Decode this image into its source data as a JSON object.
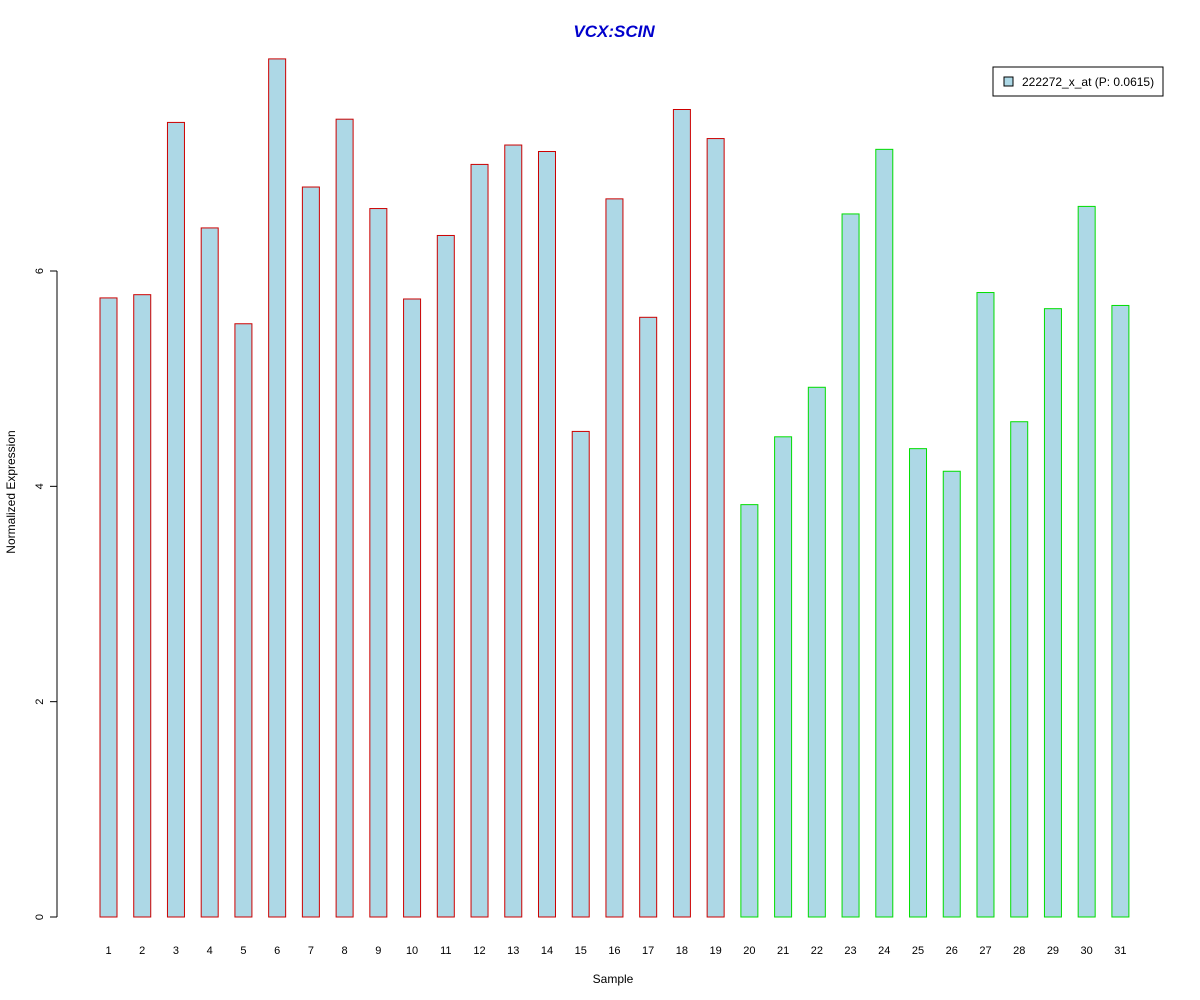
{
  "colors": {
    "title": "#0000cc",
    "bar_fill": "#add8e6",
    "group1_border": "#cc0000",
    "group2_border": "#00dd00",
    "axis": "#000000"
  },
  "chart_data": {
    "type": "bar",
    "title": "VCX:SCIN",
    "xlabel": "Sample",
    "ylabel": "Normalized Expression",
    "ylim": [
      0,
      8
    ],
    "yticks": [
      0,
      2,
      4,
      6
    ],
    "grid": false,
    "legend_position": "top-right",
    "categories": [
      "1",
      "2",
      "3",
      "4",
      "5",
      "6",
      "7",
      "8",
      "9",
      "10",
      "11",
      "12",
      "13",
      "14",
      "15",
      "16",
      "17",
      "18",
      "19",
      "20",
      "21",
      "22",
      "23",
      "24",
      "25",
      "26",
      "27",
      "28",
      "29",
      "30",
      "31"
    ],
    "series": [
      {
        "name": "222272_x_at (P: 0.0615)",
        "values": [
          5.75,
          5.78,
          7.38,
          6.4,
          5.51,
          7.97,
          6.78,
          7.41,
          6.58,
          5.74,
          6.33,
          6.99,
          7.17,
          7.11,
          4.51,
          6.67,
          5.57,
          7.5,
          7.23,
          3.83,
          4.46,
          4.92,
          6.53,
          7.13,
          4.35,
          4.14,
          5.8,
          4.6,
          5.65,
          6.6,
          5.68
        ],
        "groups": [
          1,
          1,
          1,
          1,
          1,
          1,
          1,
          1,
          1,
          1,
          1,
          1,
          1,
          1,
          1,
          1,
          1,
          1,
          1,
          2,
          2,
          2,
          2,
          2,
          2,
          2,
          2,
          2,
          2,
          2,
          2
        ]
      }
    ]
  }
}
